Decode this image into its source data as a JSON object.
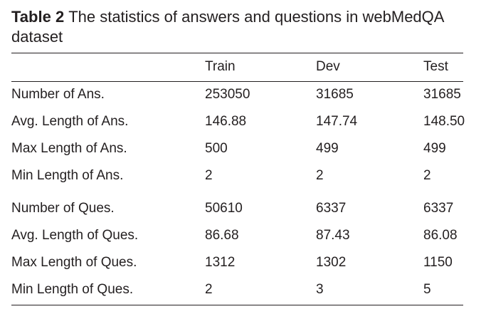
{
  "caption": {
    "label": "Table 2",
    "text": "The statistics of answers and questions in webMedQA dataset"
  },
  "table": {
    "headers": [
      "",
      "Train",
      "Dev",
      "Test"
    ],
    "rows": [
      [
        "Number of Ans.",
        "253050",
        "31685",
        "31685"
      ],
      [
        "Avg. Length of Ans.",
        "146.88",
        "147.74",
        "148.50"
      ],
      [
        "Max Length of Ans.",
        "500",
        "499",
        "499"
      ],
      [
        "Min Length of Ans.",
        "2",
        "2",
        "2"
      ],
      [
        "Number of Ques.",
        "50610",
        "6337",
        "6337"
      ],
      [
        "Avg. Length of Ques.",
        "86.68",
        "87.43",
        "86.08"
      ],
      [
        "Max Length of Ques.",
        "1312",
        "1302",
        "1150"
      ],
      [
        "Min Length of Ques.",
        "2",
        "3",
        "5"
      ]
    ]
  }
}
